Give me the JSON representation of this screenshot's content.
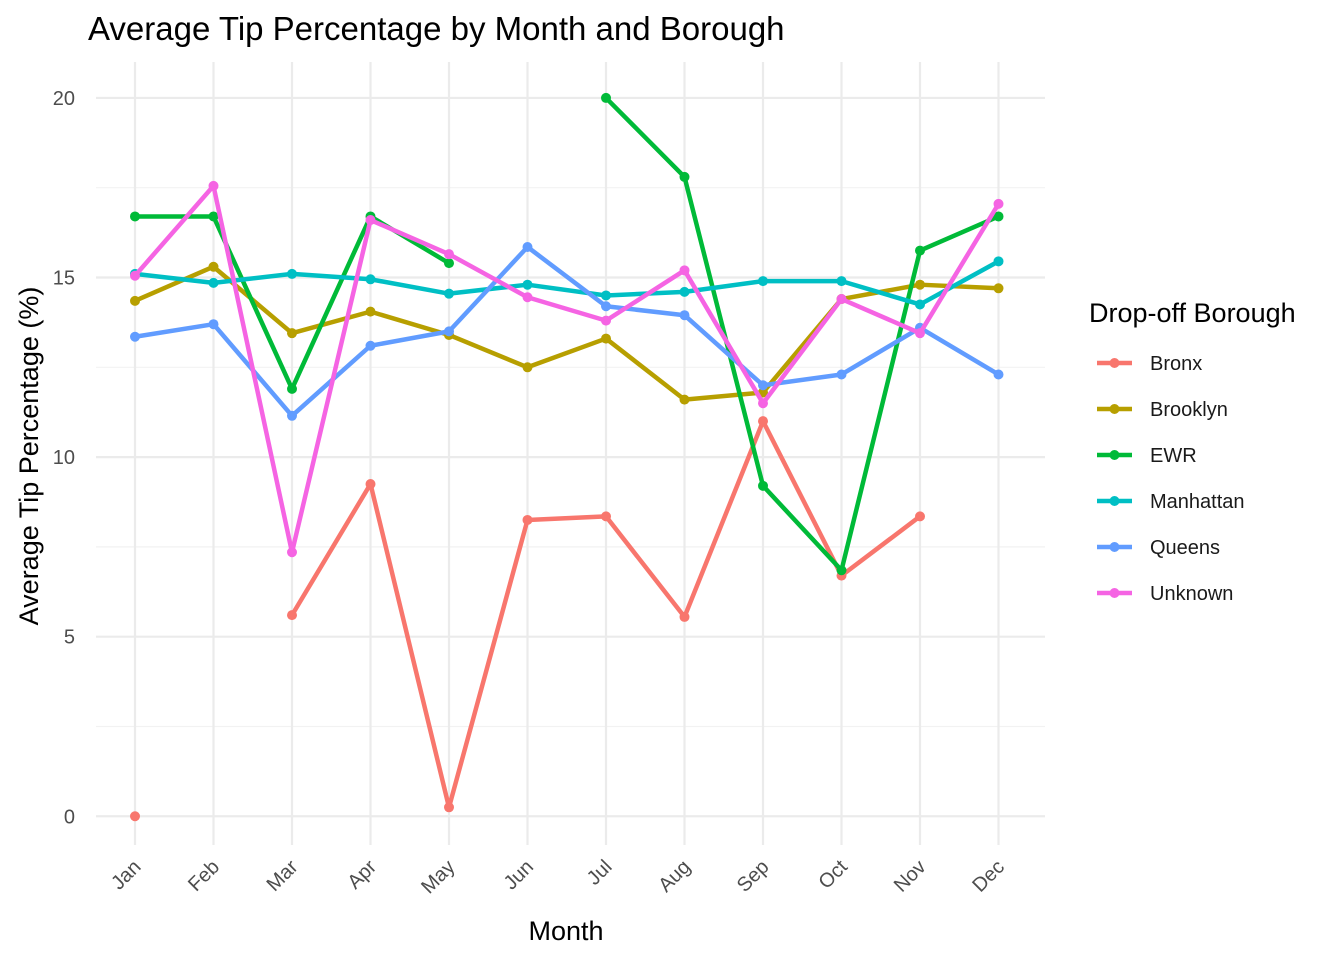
{
  "chart_data": {
    "type": "line",
    "title": "Average Tip Percentage by Month and Borough",
    "xlabel": "Month",
    "ylabel": "Average Tip Percentage (%)",
    "categories": [
      "Jan",
      "Feb",
      "Mar",
      "Apr",
      "May",
      "Jun",
      "Jul",
      "Aug",
      "Sep",
      "Oct",
      "Nov",
      "Dec"
    ],
    "ylim": [
      -0.8,
      21.0
    ],
    "yticks": [
      "0",
      "5",
      "10",
      "15",
      "20"
    ],
    "grid": true,
    "legend": {
      "title": "Drop-off Borough",
      "position": "right"
    },
    "series": [
      {
        "name": "Bronx",
        "color": "#F8766D",
        "values": [
          0.0,
          null,
          5.6,
          9.25,
          0.25,
          8.25,
          8.35,
          5.55,
          11.0,
          6.7,
          8.35,
          null
        ]
      },
      {
        "name": "Brooklyn",
        "color": "#B79F00",
        "values": [
          14.35,
          15.3,
          13.45,
          14.05,
          13.4,
          12.5,
          13.3,
          11.6,
          11.8,
          14.4,
          14.8,
          14.7
        ]
      },
      {
        "name": "EWR",
        "color": "#00BA38",
        "values": [
          16.7,
          16.7,
          11.9,
          16.7,
          15.4,
          null,
          20.0,
          17.8,
          9.2,
          6.85,
          15.75,
          16.7
        ]
      },
      {
        "name": "Manhattan",
        "color": "#00BFC4",
        "values": [
          15.1,
          14.85,
          15.1,
          14.95,
          14.55,
          14.8,
          14.5,
          14.6,
          14.9,
          14.9,
          14.25,
          15.45
        ]
      },
      {
        "name": "Queens",
        "color": "#619CFF",
        "values": [
          13.35,
          13.7,
          11.15,
          13.1,
          13.5,
          15.85,
          14.2,
          13.95,
          12.0,
          12.3,
          13.6,
          12.3
        ]
      },
      {
        "name": "Unknown",
        "color": "#F564E3",
        "values": [
          15.05,
          17.55,
          7.35,
          16.6,
          15.65,
          14.45,
          13.8,
          15.2,
          11.5,
          14.4,
          13.45,
          17.05
        ]
      }
    ]
  }
}
